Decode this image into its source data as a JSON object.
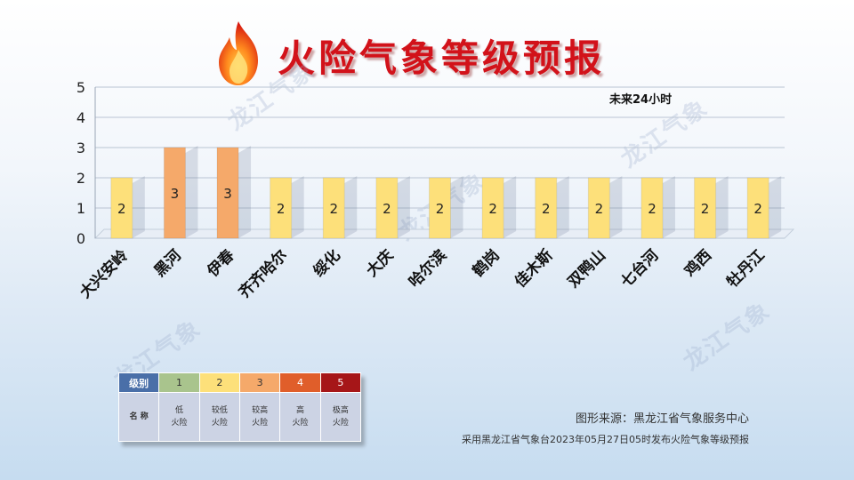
{
  "header": {
    "title": "火险气象等级预报",
    "icon": "flame-icon"
  },
  "watermark": "龙江气象",
  "chart_data": {
    "type": "bar",
    "annotation": "未来24小时",
    "categories": [
      "大兴安岭",
      "黑河",
      "伊春",
      "齐齐哈尔",
      "绥化",
      "大庆",
      "哈尔滨",
      "鹤岗",
      "佳木斯",
      "双鸭山",
      "七台河",
      "鸡西",
      "牡丹江"
    ],
    "values": [
      2,
      3,
      3,
      2,
      2,
      2,
      2,
      2,
      2,
      2,
      2,
      2,
      2
    ],
    "ylim": [
      0,
      5
    ],
    "yticks": [
      0,
      1,
      2,
      3,
      4,
      5
    ],
    "grid": true,
    "legend": "none",
    "level_colors": {
      "1": "#a9c48d",
      "2": "#fde07a",
      "3": "#f5a96a",
      "4": "#e05e2a",
      "5": "#a61618"
    }
  },
  "level_table": {
    "header_label": "级别",
    "name_label": "名 称",
    "levels": [
      {
        "level": "1",
        "name_line1": "低",
        "name_line2": "火险"
      },
      {
        "level": "2",
        "name_line1": "较低",
        "name_line2": "火险"
      },
      {
        "level": "3",
        "name_line1": "较高",
        "name_line2": "火险"
      },
      {
        "level": "4",
        "name_line1": "高",
        "name_line2": "火险"
      },
      {
        "level": "5",
        "name_line1": "极高",
        "name_line2": "火险"
      }
    ]
  },
  "footer": {
    "source": "图形来源：黑龙江省气象服务中心",
    "note": "采用黑龙江省气象台2023年05月27日05时发布火险气象等级预报"
  }
}
